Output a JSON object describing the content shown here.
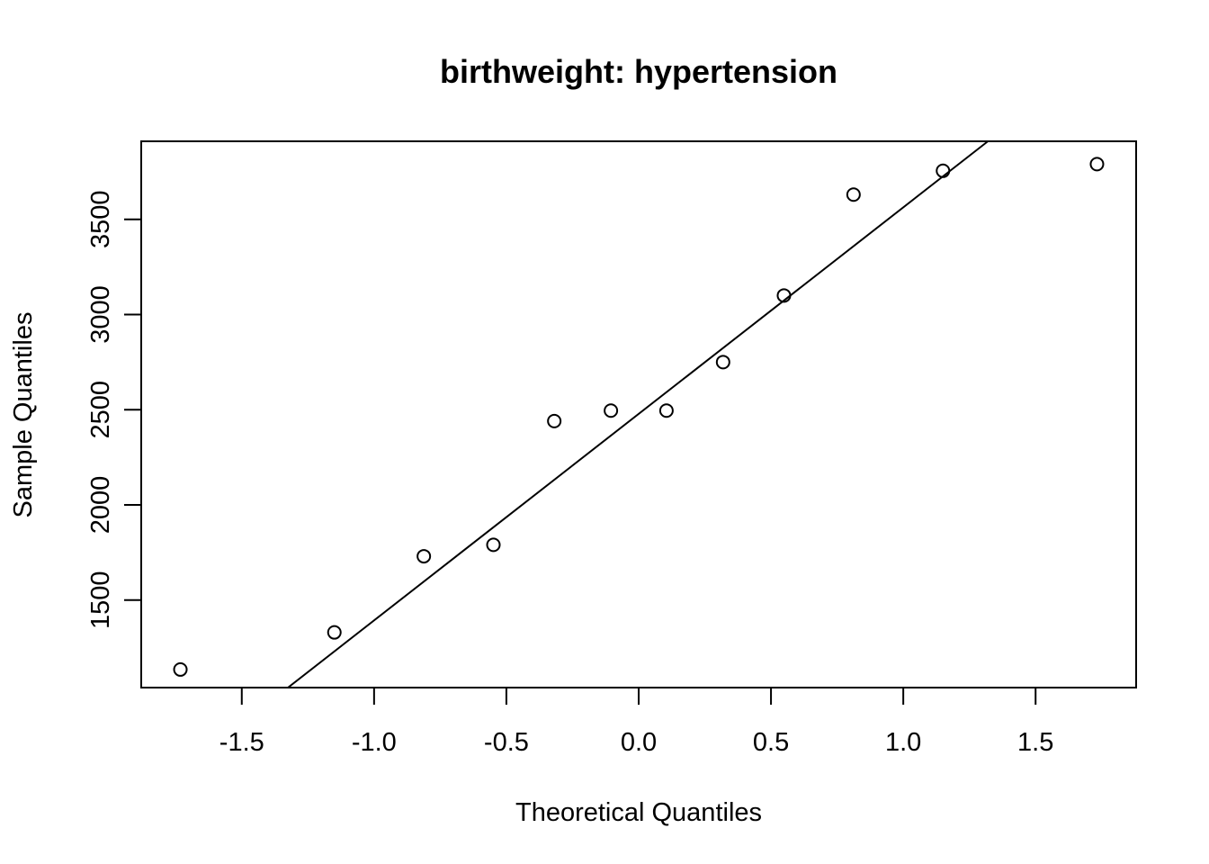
{
  "chart_data": {
    "type": "scatter",
    "title": "birthweight: hypertension",
    "xlabel": "Theoretical Quantiles",
    "ylabel": "Sample Quantiles",
    "xlim": [
      -1.88,
      1.88
    ],
    "ylim": [
      1040,
      3910
    ],
    "x_ticks": [
      -1.5,
      -1.0,
      -0.5,
      0.0,
      0.5,
      1.0,
      1.5
    ],
    "x_tick_labels": [
      "-1.5",
      "-1.0",
      "-0.5",
      "0.0",
      "0.5",
      "1.0",
      "1.5"
    ],
    "y_ticks": [
      1500,
      2000,
      2500,
      3000,
      3500
    ],
    "y_tick_labels": [
      "1500",
      "2000",
      "2500",
      "3000",
      "3500"
    ],
    "grid": false,
    "points": [
      {
        "x": -1.732,
        "y": 1135
      },
      {
        "x": -1.15,
        "y": 1330
      },
      {
        "x": -0.812,
        "y": 1730
      },
      {
        "x": -0.549,
        "y": 1790
      },
      {
        "x": -0.319,
        "y": 2440
      },
      {
        "x": -0.105,
        "y": 2495
      },
      {
        "x": 0.105,
        "y": 2495
      },
      {
        "x": 0.319,
        "y": 2750
      },
      {
        "x": 0.549,
        "y": 3100
      },
      {
        "x": 0.812,
        "y": 3630
      },
      {
        "x": 1.15,
        "y": 3755
      },
      {
        "x": 1.732,
        "y": 3790
      }
    ],
    "reference_line": {
      "intercept": 2478,
      "slope": 1085
    }
  }
}
